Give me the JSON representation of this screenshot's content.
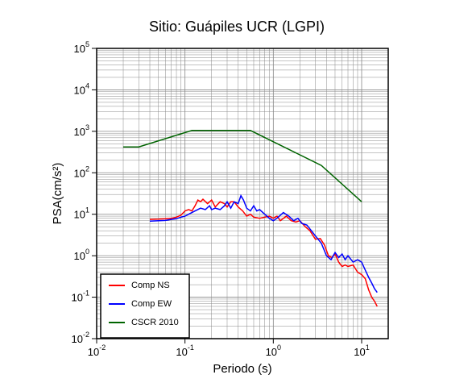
{
  "chart_data": {
    "type": "line",
    "title": "Sitio: Guápiles UCR (LGPI)",
    "x_label": "Periodo (s)",
    "y_label": "PSA(cm/s²)",
    "xscale": "log",
    "yscale": "log",
    "grid": true,
    "legend": "lower left",
    "xlim": [
      0.01,
      20
    ],
    "ylim": [
      0.01,
      100000
    ],
    "xticks": [
      {
        "value": 0.01,
        "label": "10^-2"
      },
      {
        "value": 0.1,
        "label": "10^-1"
      },
      {
        "value": 1,
        "label": "10^0"
      },
      {
        "value": 10,
        "label": "10^1"
      }
    ],
    "yticks": [
      {
        "value": 0.01,
        "label": "10^-2"
      },
      {
        "value": 0.1,
        "label": "10^-1"
      },
      {
        "value": 1,
        "label": "10^0"
      },
      {
        "value": 10,
        "label": "10^1"
      },
      {
        "value": 100,
        "label": "10^2"
      },
      {
        "value": 1000,
        "label": "10^3"
      },
      {
        "value": 10000,
        "label": "10^4"
      },
      {
        "value": 100000,
        "label": "10^5"
      }
    ],
    "series": [
      {
        "name": "Comp NS",
        "color": "#ff0000",
        "x": [
          0.04,
          0.05,
          0.06,
          0.07,
          0.08,
          0.09,
          0.1,
          0.11,
          0.12,
          0.13,
          0.14,
          0.15,
          0.16,
          0.18,
          0.2,
          0.22,
          0.25,
          0.28,
          0.3,
          0.33,
          0.36,
          0.4,
          0.45,
          0.5,
          0.55,
          0.6,
          0.7,
          0.8,
          0.9,
          1.0,
          1.1,
          1.2,
          1.4,
          1.6,
          1.8,
          2.0,
          2.3,
          2.6,
          3.0,
          3.4,
          3.8,
          4.2,
          4.6,
          5,
          5.5,
          6,
          6.5,
          7,
          8,
          9,
          10,
          11,
          12,
          13,
          14,
          15
        ],
        "values": [
          7.5,
          7.6,
          7.8,
          8,
          8.5,
          9.5,
          12,
          13,
          12,
          16,
          22,
          20,
          23,
          18,
          22,
          15,
          20,
          18,
          15,
          20,
          20,
          15,
          12,
          9,
          10,
          8.5,
          8,
          8.5,
          9,
          8,
          9,
          7,
          9,
          7,
          6.5,
          7,
          5,
          4,
          2.5,
          2.6,
          1.8,
          1.0,
          0.9,
          1.1,
          0.7,
          0.55,
          0.6,
          0.55,
          0.6,
          0.4,
          0.35,
          0.28,
          0.15,
          0.1,
          0.08,
          0.06
        ]
      },
      {
        "name": "Comp EW",
        "color": "#0000ff",
        "x": [
          0.04,
          0.05,
          0.06,
          0.07,
          0.08,
          0.09,
          0.1,
          0.11,
          0.12,
          0.13,
          0.15,
          0.17,
          0.19,
          0.2,
          0.22,
          0.25,
          0.28,
          0.3,
          0.33,
          0.36,
          0.4,
          0.43,
          0.46,
          0.5,
          0.55,
          0.6,
          0.65,
          0.7,
          0.8,
          0.9,
          1.0,
          1.1,
          1.3,
          1.5,
          1.7,
          1.9,
          2.1,
          2.4,
          2.7,
          3.0,
          3.5,
          4.0,
          4.5,
          5,
          5.5,
          6,
          6.5,
          7,
          8,
          9,
          10,
          11,
          12,
          13,
          14,
          15
        ],
        "values": [
          6.8,
          7,
          7.1,
          7.5,
          7.8,
          8.5,
          9,
          10,
          11,
          12,
          14,
          13,
          16,
          13,
          14,
          13,
          16,
          20,
          14,
          20,
          18,
          28,
          22,
          14,
          12,
          16,
          12,
          13,
          10,
          8,
          7,
          8,
          11,
          9,
          7,
          8,
          6,
          5.5,
          4,
          3,
          2.0,
          1.0,
          0.8,
          1.2,
          0.9,
          1.1,
          0.8,
          1.0,
          0.7,
          0.8,
          0.7,
          0.45,
          0.3,
          0.22,
          0.16,
          0.13
        ]
      },
      {
        "name": "CSCR 2010",
        "color": "#006400",
        "x": [
          0.02,
          0.03,
          0.12,
          0.55,
          3.5,
          10
        ],
        "values": [
          420,
          420,
          1050,
          1050,
          150,
          20
        ]
      }
    ]
  }
}
